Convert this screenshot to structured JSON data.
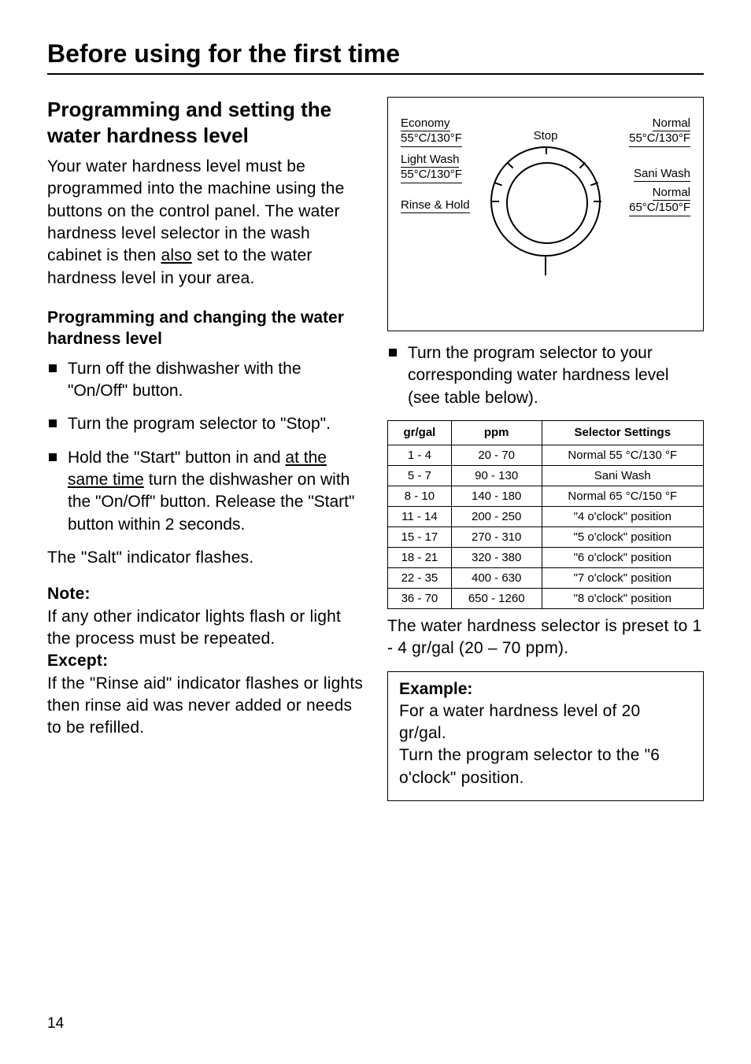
{
  "page_number": "14",
  "section_title": "Before using for the first time",
  "left": {
    "h2": "Programming and setting the water hardness level",
    "intro_pre": "Your water hardness level must be programmed into the machine using the buttons on the control panel. The water hardness level selector in the wash cabinet is then ",
    "intro_underlined": "also",
    "intro_post": " set to the water hardness level in your area.",
    "h3": "Programming and changing the water hardness level",
    "bullets": {
      "b1": "Turn off the dishwasher with the \"On/Off\" button.",
      "b2": "Turn the program selector to \"Stop\".",
      "b3_pre": "Hold the \"Start\" button in and ",
      "b3_u": "at the same time",
      "b3_post": " turn the dishwasher on with the \"On/Off\" button. Release the \"Start\" button within 2 seconds."
    },
    "salt_line": "The \"Salt\" indicator flashes.",
    "note_label": "Note:",
    "note_text": "If any other indicator lights flash or light the process must be repeated.",
    "except_label": "Except:",
    "except_text": "If the \"Rinse aid\" indicator flashes or lights then rinse aid was never added or needs to be refilled."
  },
  "dial": {
    "labels": {
      "stop": "Stop",
      "economy_l1": "Economy",
      "economy_l2": "55°C/130°F",
      "light_l1": "Light Wash",
      "light_l2": "55°C/130°F",
      "rinse": "Rinse & Hold",
      "normal55_l1": "Normal",
      "normal55_l2": "55°C/130°F",
      "sani": "Sani Wash",
      "normal65_l1": "Normal",
      "normal65_l2": "65°C/150°F"
    }
  },
  "right": {
    "bullet": "Turn the program selector to your corresponding water hardness level (see table below).",
    "preset_text": "The water hardness selector is preset to 1 - 4 gr/gal (20 – 70 ppm).",
    "example_title": "Example:",
    "example_text": "For a water hardness level of 20 gr/gal.\nTurn the program selector to the \"6 o'clock\" position."
  },
  "table": {
    "headers": {
      "c1": "gr/gal",
      "c2": "ppm",
      "c3": "Selector Settings"
    },
    "rows": [
      {
        "g": "1 -   4",
        "p": "20 -   70",
        "s": "Normal 55 °C/130 °F"
      },
      {
        "g": "5 -   7",
        "p": "90 - 130",
        "s": "Sani Wash"
      },
      {
        "g": "8 - 10",
        "p": "140 - 180",
        "s": "Normal 65 °C/150 °F"
      },
      {
        "g": "11 - 14",
        "p": "200 - 250",
        "s": "\"4 o'clock\" position"
      },
      {
        "g": "15 - 17",
        "p": "270 - 310",
        "s": "\"5 o'clock\" position"
      },
      {
        "g": "18 - 21",
        "p": "320 - 380",
        "s": "\"6 o'clock\" position"
      },
      {
        "g": "22 - 35",
        "p": "400 - 630",
        "s": "\"7 o'clock\" position"
      },
      {
        "g": "36 - 70",
        "p": "650 - 1260",
        "s": "\"8 o'clock\" position"
      }
    ]
  }
}
